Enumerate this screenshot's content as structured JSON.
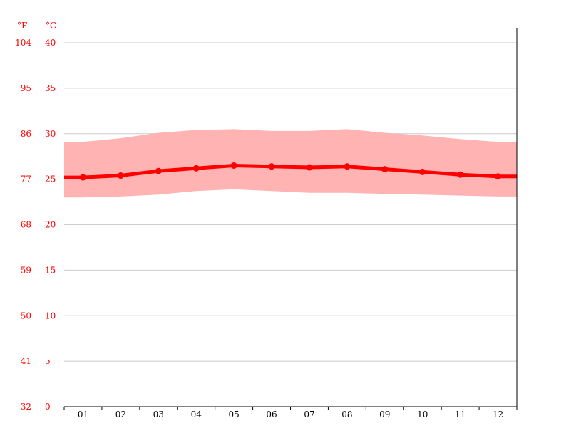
{
  "chart_data": {
    "type": "line",
    "title": "",
    "xlabel": "",
    "ylabel": "",
    "units": {
      "fahrenheit_label": "°F",
      "celsius_label": "°C"
    },
    "categories": [
      "01",
      "02",
      "03",
      "04",
      "05",
      "06",
      "07",
      "08",
      "09",
      "10",
      "11",
      "12"
    ],
    "ylim": [
      0,
      40
    ],
    "celsius_ticks": [
      "40",
      "35",
      "30",
      "25",
      "20",
      "15",
      "10",
      "5",
      "0"
    ],
    "fahrenheit_ticks": [
      "104",
      "95",
      "86",
      "77",
      "68",
      "59",
      "50",
      "41",
      "32"
    ],
    "series": [
      {
        "key": "avg",
        "values": [
          25.2,
          25.4,
          25.9,
          26.2,
          26.5,
          26.4,
          26.3,
          26.4,
          26.1,
          25.8,
          25.5,
          25.3
        ]
      },
      {
        "key": "max",
        "values": [
          29.1,
          29.5,
          30.1,
          30.4,
          30.5,
          30.3,
          30.3,
          30.5,
          30.1,
          29.8,
          29.4,
          29.1
        ]
      },
      {
        "key": "min",
        "values": [
          23.0,
          23.1,
          23.3,
          23.7,
          23.9,
          23.7,
          23.5,
          23.5,
          23.4,
          23.3,
          23.2,
          23.1
        ]
      }
    ],
    "grid": true,
    "colors": {
      "avg_line": "#ff0000",
      "range_band": "#ffb3b3",
      "grid": "#cccccc",
      "tick_label_y": "#ff0000",
      "tick_label_x": "#000000"
    }
  }
}
